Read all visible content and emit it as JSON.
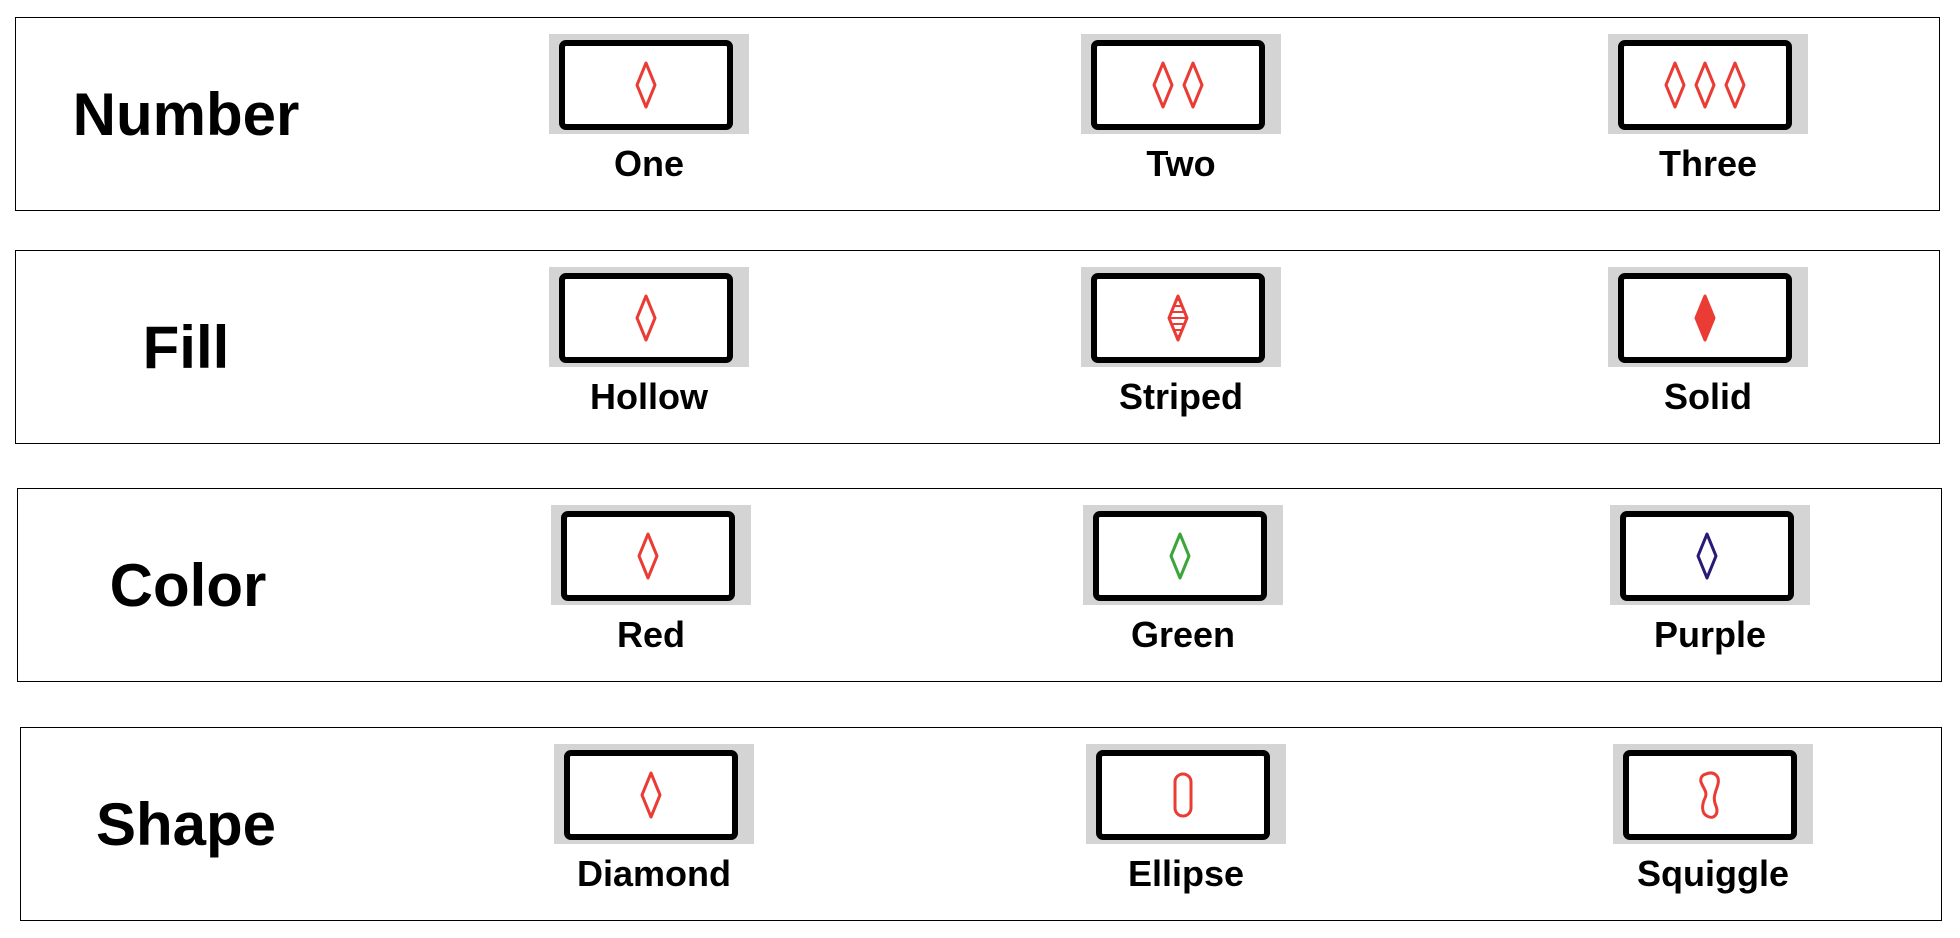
{
  "colors": {
    "red": "#ea3c34",
    "green": "#3ba53a",
    "purple": "#2a1a78",
    "card_background": "#d4d4d4",
    "card_frame": "#000000"
  },
  "rows": [
    {
      "title": "Number",
      "options": [
        {
          "label": "One",
          "count": 1,
          "fill": "hollow",
          "color": "red",
          "shape": "diamond"
        },
        {
          "label": "Two",
          "count": 2,
          "fill": "hollow",
          "color": "red",
          "shape": "diamond"
        },
        {
          "label": "Three",
          "count": 3,
          "fill": "hollow",
          "color": "red",
          "shape": "diamond"
        }
      ]
    },
    {
      "title": "Fill",
      "options": [
        {
          "label": "Hollow",
          "count": 1,
          "fill": "hollow",
          "color": "red",
          "shape": "diamond"
        },
        {
          "label": "Striped",
          "count": 1,
          "fill": "striped",
          "color": "red",
          "shape": "diamond"
        },
        {
          "label": "Solid",
          "count": 1,
          "fill": "solid",
          "color": "red",
          "shape": "diamond"
        }
      ]
    },
    {
      "title": "Color",
      "options": [
        {
          "label": "Red",
          "count": 1,
          "fill": "hollow",
          "color": "red",
          "shape": "diamond"
        },
        {
          "label": "Green",
          "count": 1,
          "fill": "hollow",
          "color": "green",
          "shape": "diamond"
        },
        {
          "label": "Purple",
          "count": 1,
          "fill": "hollow",
          "color": "purple",
          "shape": "diamond"
        }
      ]
    },
    {
      "title": "Shape",
      "options": [
        {
          "label": "Diamond",
          "count": 1,
          "fill": "hollow",
          "color": "red",
          "shape": "diamond"
        },
        {
          "label": "Ellipse",
          "count": 1,
          "fill": "hollow",
          "color": "red",
          "shape": "ellipse"
        },
        {
          "label": "Squiggle",
          "count": 1,
          "fill": "hollow",
          "color": "red",
          "shape": "squiggle"
        }
      ]
    }
  ]
}
